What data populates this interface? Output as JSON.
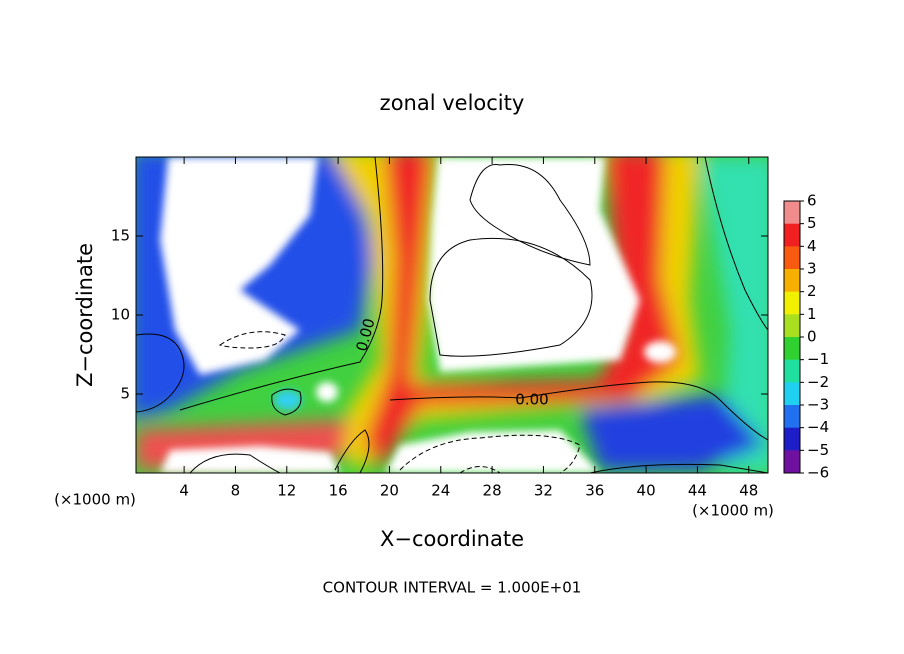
{
  "chart_data": {
    "type": "heatmap",
    "title": "zonal velocity",
    "x_label": "X−coordinate",
    "y_label": "Z−coordinate",
    "x_unit_label": "(×1000 m)",
    "y_unit_label": "(×1000 m)",
    "footer": "CONTOUR INTERVAL = 1.000E+01",
    "contour_labels": [
      "0.00",
      "0.00"
    ],
    "xlim": [
      0.25,
      49.5
    ],
    "xticks": [
      4,
      8,
      12,
      16,
      20,
      24,
      28,
      32,
      36,
      40,
      44,
      48
    ],
    "ylim": [
      0,
      20
    ],
    "yticks": [
      5,
      10,
      15
    ],
    "colorbar": {
      "lim": [
        -6,
        6
      ],
      "ticks": [
        {
          "value": 6,
          "label": "6"
        },
        {
          "value": 5,
          "label": "5"
        },
        {
          "value": 4,
          "label": "4"
        },
        {
          "value": 3,
          "label": "3"
        },
        {
          "value": 2,
          "label": "2"
        },
        {
          "value": 1,
          "label": "1"
        },
        {
          "value": 0,
          "label": "0"
        },
        {
          "value": -1,
          "label": "−1"
        },
        {
          "value": -2,
          "label": "−2"
        },
        {
          "value": -3,
          "label": "−3"
        },
        {
          "value": -4,
          "label": "−4"
        },
        {
          "value": -5,
          "label": "−5"
        },
        {
          "value": -6,
          "label": "−6"
        }
      ],
      "colors": [
        "#f08c8c",
        "#f02020",
        "#f85a10",
        "#f8b000",
        "#f0f000",
        "#a8e020",
        "#30d030",
        "#20e0a0",
        "#20d0f0",
        "#2070f0",
        "#1e1ec8",
        "#7010a0"
      ]
    }
  }
}
